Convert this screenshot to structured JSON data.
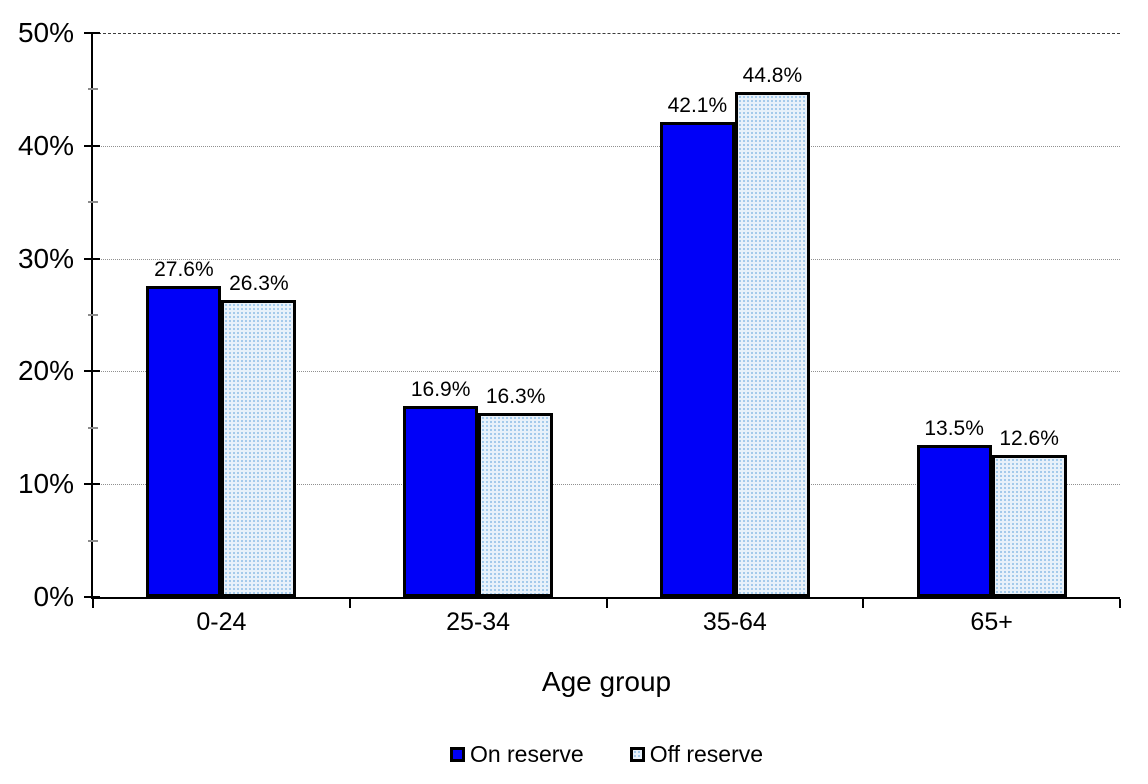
{
  "chart_data": {
    "type": "bar",
    "title": "",
    "xlabel": "Age group",
    "ylabel": "",
    "ylim": [
      0,
      50
    ],
    "yticks": [
      0,
      10,
      20,
      30,
      40,
      50
    ],
    "ytick_labels": [
      "0%",
      "10%",
      "20%",
      "30%",
      "40%",
      "50%"
    ],
    "yminor_ticks": [
      5,
      15,
      25,
      35,
      45
    ],
    "grid": "horizontal dotted gridlines at major ticks, darker dashed line at 50%",
    "legend_position": "bottom-center",
    "categories": [
      "0-24",
      "25-34",
      "35-64",
      "65+"
    ],
    "series": [
      {
        "name": "On reserve",
        "values": [
          27.6,
          16.9,
          42.1,
          13.5
        ],
        "value_labels": [
          "27.6%",
          "16.9%",
          "42.1%",
          "13.5%"
        ],
        "fill": "#0000f8",
        "pattern": "solid",
        "border": "#000000"
      },
      {
        "name": "Off reserve",
        "values": [
          26.3,
          16.3,
          44.8,
          12.6
        ],
        "value_labels": [
          "26.3%",
          "16.3%",
          "44.8%",
          "12.6%"
        ],
        "fill": "#e8f1fa",
        "pattern": "dots",
        "dot_color": "#9ec7ea",
        "border": "#000000"
      }
    ],
    "axis_color": "#000000",
    "gridline_color": "#909090"
  }
}
